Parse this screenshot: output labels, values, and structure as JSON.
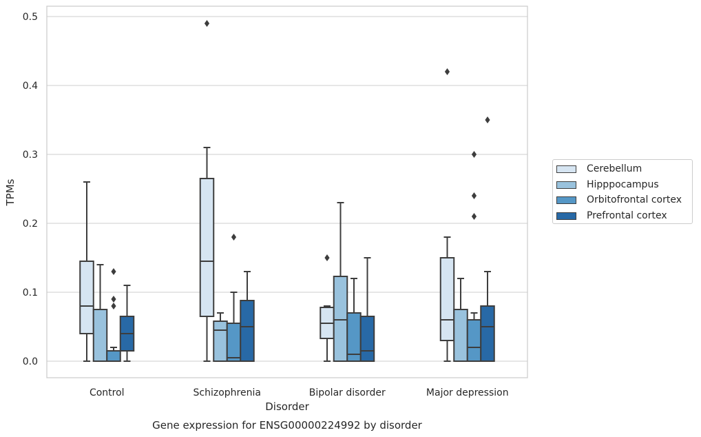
{
  "chart_data": {
    "type": "box",
    "title": "Gene expression for ENSG00000224992 by disorder",
    "xlabel": "Disorder",
    "ylabel": "TPMs",
    "ylim": [
      -0.023,
      0.515
    ],
    "yticks": [
      "0.0",
      "0.1",
      "0.2",
      "0.3",
      "0.4",
      "0.5"
    ],
    "ytick_values": [
      0,
      0.1,
      0.2,
      0.3,
      0.4,
      0.5
    ],
    "grid": true,
    "legend_position": "right",
    "categories": [
      "Control",
      "Schizophrenia",
      "Bipolar disorder",
      "Major depression"
    ],
    "series": [
      {
        "name": "Cerebellum",
        "color": "#d6e5f2",
        "boxes": [
          {
            "whislo": 0,
            "q1": 0.04,
            "med": 0.08,
            "q3": 0.145,
            "whishi": 0.26,
            "fliers": []
          },
          {
            "whislo": 0,
            "q1": 0.065,
            "med": 0.145,
            "q3": 0.265,
            "whishi": 0.31,
            "fliers": [
              0.49
            ]
          },
          {
            "whislo": 0,
            "q1": 0.033,
            "med": 0.055,
            "q3": 0.078,
            "whishi": 0.08,
            "fliers": [
              0.15
            ]
          },
          {
            "whislo": 0,
            "q1": 0.03,
            "med": 0.06,
            "q3": 0.15,
            "whishi": 0.18,
            "fliers": [
              0.42
            ]
          }
        ]
      },
      {
        "name": "Hipppocampus",
        "color": "#99c2dd",
        "boxes": [
          {
            "whislo": 0,
            "q1": 0,
            "med": 0,
            "q3": 0.075,
            "whishi": 0.14,
            "fliers": []
          },
          {
            "whislo": 0,
            "q1": 0,
            "med": 0.045,
            "q3": 0.058,
            "whishi": 0.07,
            "fliers": []
          },
          {
            "whislo": 0,
            "q1": 0,
            "med": 0.06,
            "q3": 0.123,
            "whishi": 0.23,
            "fliers": []
          },
          {
            "whislo": 0,
            "q1": 0,
            "med": 0,
            "q3": 0.075,
            "whishi": 0.12,
            "fliers": []
          }
        ]
      },
      {
        "name": "Orbitofrontal cortex",
        "color": "#5597c6",
        "boxes": [
          {
            "whislo": 0,
            "q1": 0,
            "med": 0,
            "q3": 0.015,
            "whishi": 0.02,
            "fliers": [
              0.08,
              0.09,
              0.13
            ]
          },
          {
            "whislo": 0,
            "q1": 0,
            "med": 0.005,
            "q3": 0.055,
            "whishi": 0.1,
            "fliers": [
              0.18
            ]
          },
          {
            "whislo": 0,
            "q1": 0,
            "med": 0.01,
            "q3": 0.07,
            "whishi": 0.12,
            "fliers": []
          },
          {
            "whislo": 0,
            "q1": 0,
            "med": 0.02,
            "q3": 0.06,
            "whishi": 0.07,
            "fliers": [
              0.21,
              0.24,
              0.3
            ]
          }
        ]
      },
      {
        "name": "Prefrontal cortex",
        "color": "#2869a6",
        "boxes": [
          {
            "whislo": 0,
            "q1": 0.015,
            "med": 0.04,
            "q3": 0.065,
            "whishi": 0.11,
            "fliers": []
          },
          {
            "whislo": 0,
            "q1": 0,
            "med": 0.05,
            "q3": 0.088,
            "whishi": 0.13,
            "fliers": []
          },
          {
            "whislo": 0,
            "q1": 0,
            "med": 0.015,
            "q3": 0.065,
            "whishi": 0.15,
            "fliers": []
          },
          {
            "whislo": 0,
            "q1": 0,
            "med": 0.05,
            "q3": 0.08,
            "whishi": 0.13,
            "fliers": [
              0.35
            ]
          }
        ]
      }
    ]
  }
}
